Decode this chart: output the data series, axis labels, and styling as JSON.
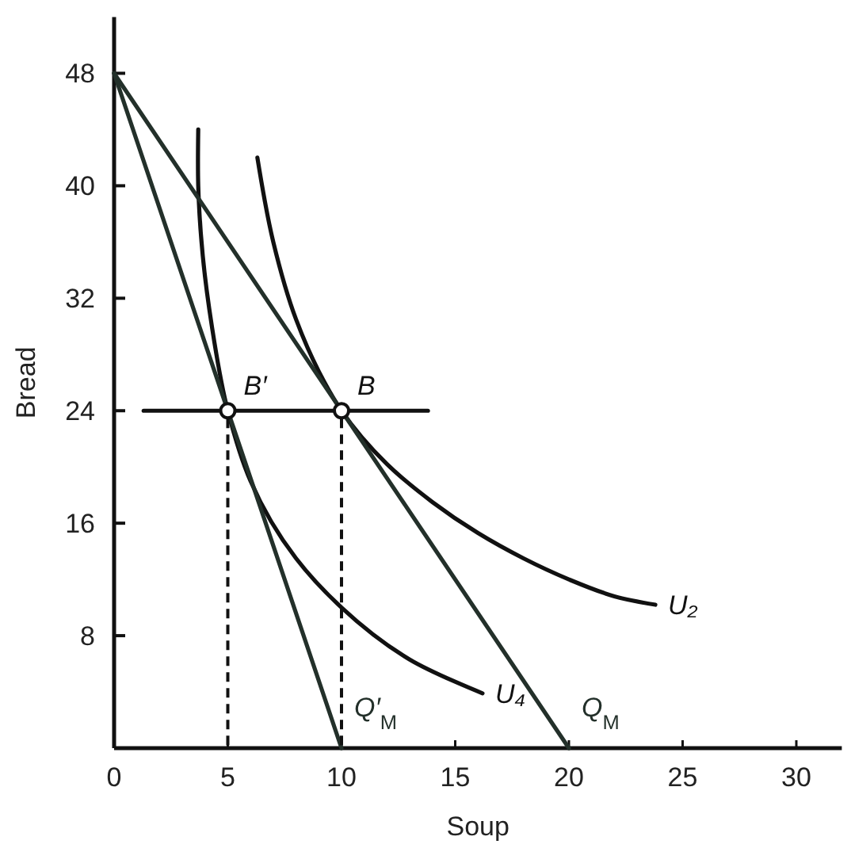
{
  "chart_data": {
    "type": "line",
    "xlabel": "Soup",
    "ylabel": "Bread",
    "xlim": [
      0,
      32
    ],
    "ylim": [
      0,
      52
    ],
    "xticks": [
      0,
      5,
      10,
      15,
      20,
      25,
      30
    ],
    "yticks": [
      8,
      16,
      24,
      32,
      40,
      48
    ],
    "grid": false,
    "series": [
      {
        "name": "U₂",
        "color": "#111111",
        "x": [
          6.3,
          7,
          8,
          9,
          10,
          12,
          14,
          16,
          18,
          20,
          22,
          23.8
        ],
        "values": [
          42,
          36,
          30.5,
          26.8,
          24,
          20.2,
          17.5,
          15.3,
          13.5,
          12,
          10.8,
          10.2
        ]
      },
      {
        "name": "U₄",
        "color": "#111111",
        "x": [
          3.7,
          3.7,
          3.9,
          4.3,
          5,
          6,
          8,
          10,
          13,
          16.2
        ],
        "values": [
          44,
          40,
          35,
          30,
          24,
          19,
          13.5,
          10,
          6.3,
          3.9
        ]
      },
      {
        "name": "Q$_{M}$",
        "color": "#23302a",
        "x": [
          0,
          20
        ],
        "values": [
          48,
          0
        ]
      },
      {
        "name": "Q′$_{M}$",
        "color": "#23302a",
        "x": [
          0,
          10
        ],
        "values": [
          48,
          0
        ]
      },
      {
        "color": "#111111",
        "x": [
          1.3,
          13.8
        ],
        "values": [
          24,
          24
        ]
      },
      {
        "name": "B′",
        "type": "scatter",
        "marker": "circle",
        "color": "#111111",
        "x": [
          5
        ],
        "values": [
          24
        ]
      },
      {
        "name": "B",
        "type": "scatter",
        "marker": "circle",
        "color": "#111111",
        "x": [
          10
        ],
        "values": [
          24
        ]
      }
    ]
  }
}
